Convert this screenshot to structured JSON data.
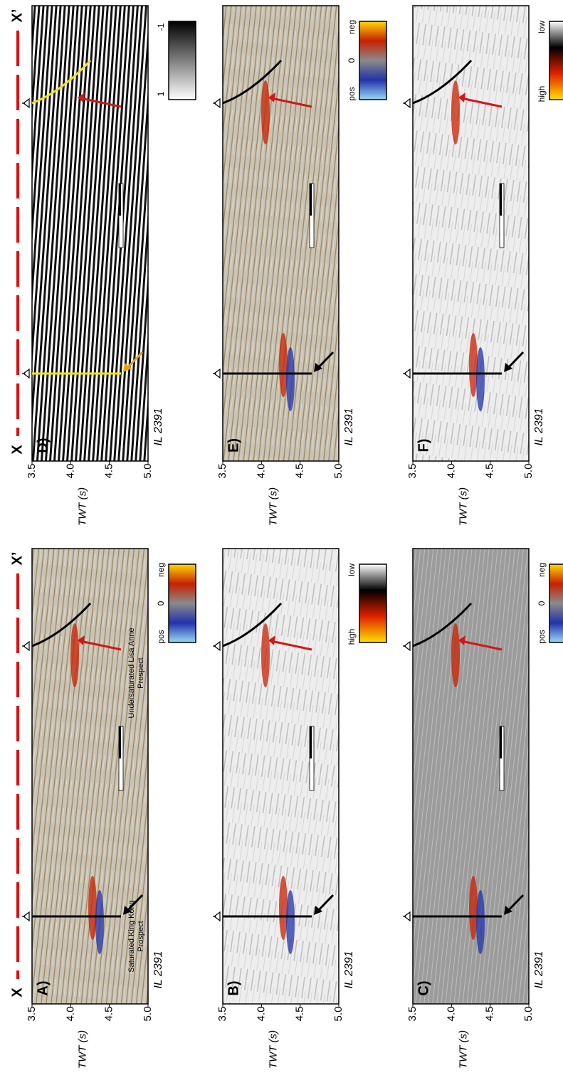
{
  "panels": [
    {
      "label": "A)",
      "start": "X",
      "end": "X’",
      "section": "IL 2391",
      "axis_label": "TWT (s)",
      "ticks": [
        "3.5",
        "4.0",
        "4.5",
        "5.0"
      ],
      "colorbar": {
        "labels": [
          "pos",
          "0",
          "neg"
        ],
        "colors": [
          "#9ad8f4",
          "#2233aa",
          "#8a8a8a",
          "#c82000",
          "#ffd800"
        ]
      },
      "annotations": [
        [
          "Saturated King Kong",
          "Prospect"
        ],
        [
          "Undersaturated Lisa Anne",
          "Prospect"
        ]
      ]
    },
    {
      "label": "B)",
      "section": "IL 2391",
      "axis_label": "TWT (s)",
      "ticks": [
        "3.5",
        "4.0",
        "4.5",
        "5.0"
      ],
      "colorbar": {
        "labels": [
          "high",
          "low"
        ],
        "colors": [
          "#ffe000",
          "#e02000",
          "#000000",
          "#ffffff"
        ]
      }
    },
    {
      "label": "C)",
      "section": "IL 2391",
      "axis_label": "TWT (s)",
      "ticks": [
        "3.5",
        "4.0",
        "4.5",
        "5.0"
      ],
      "colorbar": {
        "labels": [
          "pos",
          "0",
          "neg"
        ],
        "colors": [
          "#9ad8f4",
          "#2233aa",
          "#8a8a8a",
          "#c82000",
          "#ffd800"
        ]
      }
    },
    {
      "label": "D)",
      "start": "X",
      "end": "X’",
      "section": "IL 2391",
      "axis_label": "TWT (s)",
      "ticks": [
        "3.5",
        "4.0",
        "4.5",
        "5.0"
      ],
      "colorbar": {
        "labels": [
          "1",
          "-1"
        ],
        "colors": [
          "#ffffff",
          "#000000"
        ]
      }
    },
    {
      "label": "E)",
      "section": "IL 2391",
      "axis_label": "TWT (s)",
      "ticks": [
        "3.5",
        "4.0",
        "4.5",
        "5.0"
      ],
      "colorbar": {
        "labels": [
          "pos",
          "0",
          "neg"
        ],
        "colors": [
          "#9ad8f4",
          "#2233aa",
          "#8a8a8a",
          "#c82000",
          "#ffd800"
        ]
      }
    },
    {
      "label": "F)",
      "section": "IL 2391",
      "axis_label": "TWT (s)",
      "ticks": [
        "3.5",
        "4.0",
        "4.5",
        "5.0"
      ],
      "colorbar": {
        "labels": [
          "high",
          "low"
        ],
        "colors": [
          "#ffe000",
          "#e02000",
          "#000000",
          "#ffffff"
        ]
      }
    }
  ]
}
